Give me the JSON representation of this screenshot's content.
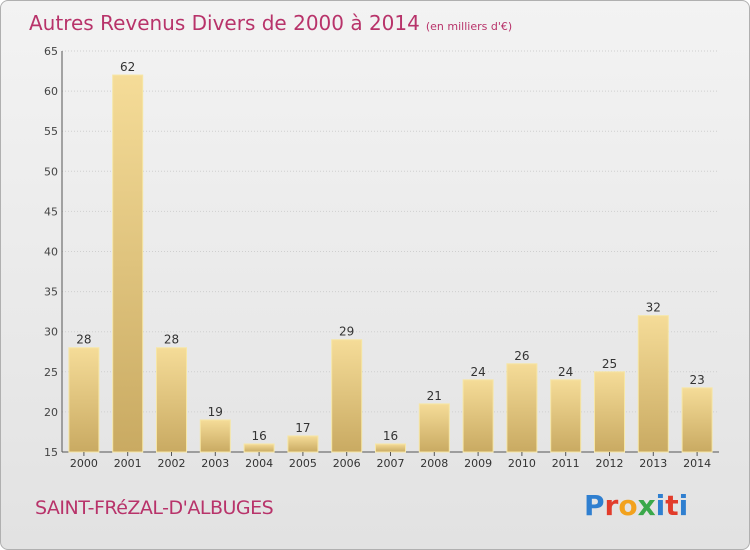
{
  "header": {
    "title": "Autres Revenus Divers de 2000 à 2014",
    "subtitle": "(en milliers d'€)"
  },
  "footer": {
    "commune": "SAINT-FRéZAL-D'ALBUGES",
    "brand": "Proxiti"
  },
  "colors": {
    "title": "#b8336a",
    "bar_light": "#f5dc98",
    "bar_dark": "#c9aa62",
    "grid": "#cfcfcf",
    "axis": "#555555"
  },
  "chart_data": {
    "type": "bar",
    "title": "Autres Revenus Divers de 2000 à 2014",
    "xlabel": "",
    "ylabel": "",
    "categories": [
      "2000",
      "2001",
      "2002",
      "2003",
      "2004",
      "2005",
      "2006",
      "2007",
      "2008",
      "2009",
      "2010",
      "2011",
      "2012",
      "2013",
      "2014"
    ],
    "values": [
      28,
      62,
      28,
      19,
      16,
      17,
      29,
      16,
      21,
      24,
      26,
      24,
      25,
      32,
      23
    ],
    "ylim": [
      15,
      65
    ],
    "yticks": [
      15,
      20,
      25,
      30,
      35,
      40,
      45,
      50,
      55,
      60,
      65
    ],
    "grid": true,
    "data_labels": true
  }
}
